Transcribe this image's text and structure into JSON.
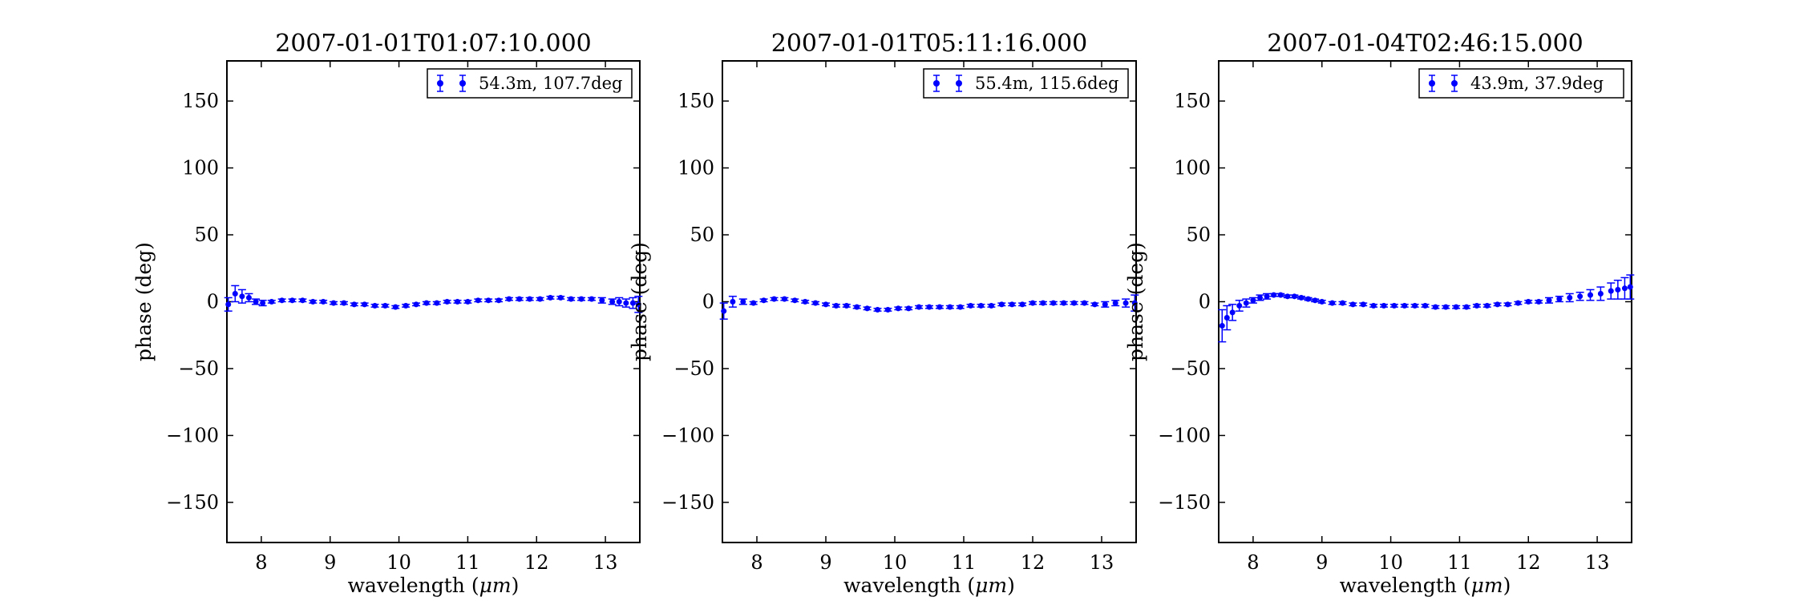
{
  "chart_data": [
    {
      "type": "scatter",
      "title": "2007-01-01T01:07:10.000",
      "xlabel_main": "wavelength (",
      "xlabel_unit": "μm",
      "xlabel_close": ")",
      "ylabel": "phase (deg)",
      "xlim": [
        7.5,
        13.5
      ],
      "ylim": [
        -180,
        180
      ],
      "xticks": [
        8,
        9,
        10,
        11,
        12,
        13
      ],
      "yticks": [
        150,
        100,
        50,
        0,
        -50,
        -100,
        -150
      ],
      "ytick_labels": [
        "150",
        "100",
        "50",
        "0",
        "−50",
        "−100",
        "−150"
      ],
      "legend_placement": "upper-right",
      "series": [
        {
          "name": "54.3m, 107.7deg",
          "color": "#0000ff",
          "x": [
            7.52,
            7.62,
            7.72,
            7.82,
            7.92,
            8.02,
            8.15,
            8.3,
            8.45,
            8.6,
            8.75,
            8.9,
            9.05,
            9.2,
            9.35,
            9.5,
            9.65,
            9.8,
            9.95,
            10.1,
            10.25,
            10.4,
            10.55,
            10.7,
            10.85,
            11.0,
            11.15,
            11.3,
            11.45,
            11.6,
            11.75,
            11.9,
            12.05,
            12.2,
            12.35,
            12.5,
            12.65,
            12.8,
            12.95,
            13.1,
            13.2,
            13.3,
            13.4,
            13.48
          ],
          "y": [
            -2,
            6,
            4,
            3,
            0,
            -1,
            0,
            1,
            1,
            1,
            0,
            0,
            -1,
            -1,
            -2,
            -2,
            -3,
            -3,
            -4,
            -3,
            -2,
            -1,
            -1,
            0,
            0,
            0,
            1,
            1,
            1,
            2,
            2,
            2,
            2,
            3,
            3,
            2,
            2,
            2,
            1,
            0,
            0,
            -1,
            -1,
            -2
          ],
          "err": [
            5,
            6,
            5,
            3,
            2,
            2,
            1,
            1,
            1,
            1,
            1,
            1,
            1,
            1,
            1,
            1,
            1,
            1,
            1,
            1,
            1,
            1,
            1,
            1,
            1,
            1,
            1,
            1,
            1,
            1,
            1,
            1,
            1,
            1,
            1,
            1,
            1,
            1,
            2,
            2,
            3,
            3,
            4,
            6
          ]
        }
      ]
    },
    {
      "type": "scatter",
      "title": "2007-01-01T05:11:16.000",
      "xlabel_main": "wavelength (",
      "xlabel_unit": "μm",
      "xlabel_close": ")",
      "ylabel": "phase (deg)",
      "xlim": [
        7.5,
        13.5
      ],
      "ylim": [
        -180,
        180
      ],
      "xticks": [
        8,
        9,
        10,
        11,
        12,
        13
      ],
      "yticks": [
        150,
        100,
        50,
        0,
        -50,
        -100,
        -150
      ],
      "ytick_labels": [
        "150",
        "100",
        "50",
        "0",
        "−50",
        "−100",
        "−150"
      ],
      "legend_placement": "upper-right",
      "series": [
        {
          "name": "55.4m, 115.6deg",
          "color": "#0000ff",
          "x": [
            7.52,
            7.65,
            7.8,
            7.95,
            8.1,
            8.25,
            8.4,
            8.55,
            8.7,
            8.85,
            9.0,
            9.15,
            9.3,
            9.45,
            9.6,
            9.75,
            9.9,
            10.05,
            10.2,
            10.35,
            10.5,
            10.65,
            10.8,
            10.95,
            11.1,
            11.25,
            11.4,
            11.55,
            11.7,
            11.85,
            12.0,
            12.15,
            12.3,
            12.45,
            12.6,
            12.75,
            12.9,
            13.05,
            13.2,
            13.35,
            13.48
          ],
          "y": [
            -7,
            0,
            0,
            -1,
            1,
            2,
            2,
            1,
            0,
            -1,
            -2,
            -3,
            -3,
            -4,
            -5,
            -6,
            -6,
            -5,
            -5,
            -4,
            -4,
            -4,
            -4,
            -4,
            -3,
            -3,
            -3,
            -2,
            -2,
            -2,
            -1,
            -1,
            -1,
            -1,
            -1,
            -1,
            -2,
            -2,
            -1,
            -1,
            -1
          ],
          "err": [
            6,
            4,
            2,
            1,
            1,
            1,
            1,
            1,
            1,
            1,
            1,
            1,
            1,
            1,
            1,
            1,
            1,
            1,
            1,
            1,
            1,
            1,
            1,
            1,
            1,
            1,
            1,
            1,
            1,
            1,
            1,
            1,
            1,
            1,
            1,
            1,
            1,
            2,
            2,
            3,
            6
          ]
        }
      ]
    },
    {
      "type": "scatter",
      "title": "2007-01-04T02:46:15.000",
      "xlabel_main": "wavelength (",
      "xlabel_unit": "μm",
      "xlabel_close": ")",
      "ylabel": "phase (deg)",
      "xlim": [
        7.5,
        13.5
      ],
      "ylim": [
        -180,
        180
      ],
      "xticks": [
        8,
        9,
        10,
        11,
        12,
        13
      ],
      "yticks": [
        150,
        100,
        50,
        0,
        -50,
        -100,
        -150
      ],
      "ytick_labels": [
        "150",
        "100",
        "50",
        "0",
        "−50",
        "−100",
        "−150"
      ],
      "legend_placement": "upper-right",
      "series": [
        {
          "name": "43.9m, 37.9deg",
          "color": "#0000ff",
          "x": [
            7.55,
            7.62,
            7.7,
            7.8,
            7.9,
            8.0,
            8.1,
            8.2,
            8.3,
            8.4,
            8.5,
            8.6,
            8.7,
            8.8,
            8.9,
            9.0,
            9.15,
            9.3,
            9.45,
            9.6,
            9.75,
            9.9,
            10.05,
            10.2,
            10.35,
            10.5,
            10.65,
            10.8,
            10.95,
            11.1,
            11.25,
            11.4,
            11.55,
            11.7,
            11.85,
            12.0,
            12.15,
            12.3,
            12.45,
            12.6,
            12.75,
            12.9,
            13.05,
            13.2,
            13.3,
            13.4,
            13.48
          ],
          "y": [
            -18,
            -12,
            -8,
            -3,
            -1,
            1,
            3,
            4,
            5,
            5,
            4,
            4,
            3,
            2,
            1,
            0,
            -1,
            -1,
            -2,
            -2,
            -3,
            -3,
            -3,
            -3,
            -3,
            -3,
            -4,
            -4,
            -4,
            -4,
            -3,
            -3,
            -2,
            -2,
            -1,
            0,
            0,
            1,
            2,
            3,
            4,
            5,
            6,
            8,
            9,
            10,
            11
          ],
          "err": [
            12,
            9,
            6,
            4,
            3,
            2,
            2,
            2,
            1,
            1,
            1,
            1,
            1,
            1,
            1,
            1,
            1,
            1,
            1,
            1,
            1,
            1,
            1,
            1,
            1,
            1,
            1,
            1,
            1,
            1,
            1,
            1,
            1,
            1,
            1,
            1,
            1,
            2,
            2,
            3,
            3,
            4,
            5,
            6,
            7,
            8,
            9
          ]
        }
      ]
    }
  ]
}
